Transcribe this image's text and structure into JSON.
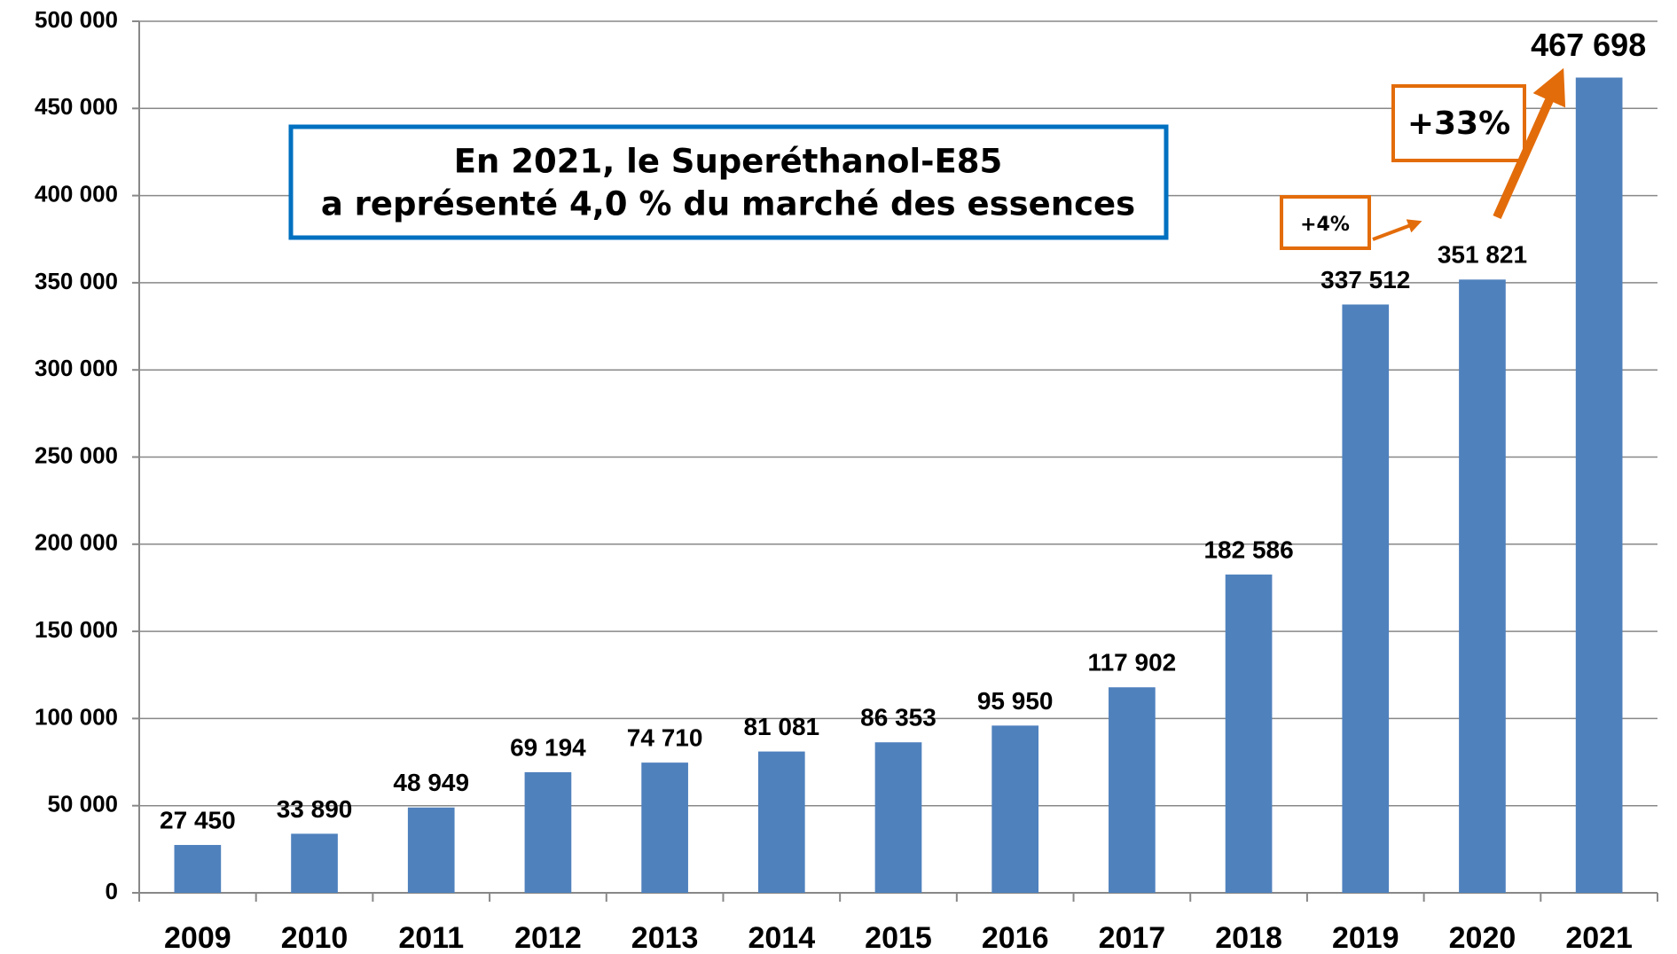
{
  "chart_data": {
    "type": "bar",
    "categories": [
      "2009",
      "2010",
      "2011",
      "2012",
      "2013",
      "2014",
      "2015",
      "2016",
      "2017",
      "2018",
      "2019",
      "2020",
      "2021"
    ],
    "values": [
      27450,
      33890,
      48949,
      69194,
      74710,
      81081,
      86353,
      95950,
      117902,
      182586,
      337512,
      351821,
      467698
    ],
    "value_labels": [
      "27 450",
      "33 890",
      "48 949",
      "69 194",
      "74 710",
      "81 081",
      "86 353",
      "95 950",
      "117 902",
      "182 586",
      "337 512",
      "351 821",
      "467 698"
    ],
    "color": "#4f81bd",
    "ylim": [
      0,
      500000
    ],
    "yticks": [
      {
        "value": 0,
        "label": "0"
      },
      {
        "value": 50000,
        "label": "50 000"
      },
      {
        "value": 100000,
        "label": "100 000"
      },
      {
        "value": 150000,
        "label": "150 000"
      },
      {
        "value": 200000,
        "label": "200 000"
      },
      {
        "value": 250000,
        "label": "250 000"
      },
      {
        "value": 300000,
        "label": "300 000"
      },
      {
        "value": 350000,
        "label": "350 000"
      },
      {
        "value": 400000,
        "label": "400 000"
      },
      {
        "value": 450000,
        "label": "450 000"
      },
      {
        "value": 500000,
        "label": "500 000"
      }
    ],
    "grid": true,
    "annotations": [
      "En 2021, le Superéthanol-E85",
      "a représenté 4,0 % du marché des essences",
      "+4%",
      "+33%"
    ]
  }
}
